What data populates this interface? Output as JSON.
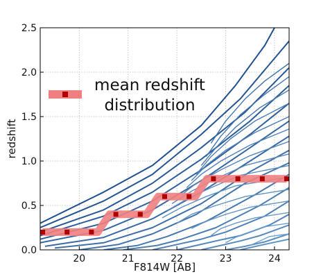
{
  "chart_data": {
    "type": "line",
    "xlabel": "F814W [AB]",
    "ylabel": "redshift",
    "xlim": [
      19.2,
      24.3
    ],
    "ylim": [
      0.0,
      2.5
    ],
    "x_ticks": [
      "20",
      "21",
      "22",
      "23",
      "24"
    ],
    "x_tick_values": [
      20,
      21,
      22,
      23,
      24
    ],
    "y_ticks": [
      "0.0",
      "0.5",
      "1.0",
      "1.5",
      "2.0",
      "2.5"
    ],
    "y_tick_values": [
      0.0,
      0.5,
      1.0,
      1.5,
      2.0,
      2.5
    ],
    "grid": true,
    "legend": {
      "placement": "top-left",
      "lines": [
        "mean redshift",
        "distribution"
      ]
    },
    "colors": {
      "contour_dark": "#1f4f8f",
      "contour_light": "#7fb2dc",
      "mean_line": "#f08080",
      "mean_marker": "#b00000"
    },
    "series": [
      {
        "name": "mean redshift distribution",
        "x": [
          19.25,
          19.75,
          20.25,
          20.75,
          21.25,
          21.75,
          22.25,
          22.75,
          23.25,
          23.75,
          24.25
        ],
        "y": [
          0.2,
          0.2,
          0.2,
          0.4,
          0.4,
          0.6,
          0.6,
          0.8,
          0.8,
          0.8,
          0.8
        ]
      }
    ],
    "contours": [
      {
        "x": [
          19.2,
          20.5,
          21.5,
          22.5,
          23.2,
          23.8,
          24.0
        ],
        "y": [
          0.3,
          0.65,
          0.95,
          1.4,
          1.85,
          2.3,
          2.5
        ]
      },
      {
        "x": [
          19.2,
          20.5,
          21.5,
          22.5,
          23.3,
          24.3
        ],
        "y": [
          0.25,
          0.55,
          0.85,
          1.3,
          1.7,
          2.35
        ]
      },
      {
        "x": [
          19.2,
          20.5,
          21.5,
          22.5,
          23.4,
          24.3
        ],
        "y": [
          0.2,
          0.45,
          0.75,
          1.15,
          1.55,
          2.05
        ]
      },
      {
        "x": [
          19.2,
          20.5,
          21.5,
          22.5,
          23.5,
          24.3
        ],
        "y": [
          0.16,
          0.38,
          0.65,
          1.02,
          1.45,
          1.85
        ]
      },
      {
        "x": [
          19.2,
          20.5,
          21.5,
          22.5,
          23.5,
          24.3
        ],
        "y": [
          0.12,
          0.3,
          0.55,
          0.9,
          1.3,
          1.65
        ]
      },
      {
        "x": [
          19.2,
          20.5,
          21.5,
          22.5,
          23.5,
          24.3
        ],
        "y": [
          0.08,
          0.22,
          0.45,
          0.78,
          1.15,
          1.45
        ]
      },
      {
        "x": [
          19.3,
          20.5,
          21.5,
          22.5,
          23.5,
          24.3
        ],
        "y": [
          0.04,
          0.14,
          0.35,
          0.65,
          1.0,
          1.28
        ]
      },
      {
        "x": [
          19.5,
          20.5,
          21.5,
          22.5,
          23.5,
          24.3
        ],
        "y": [
          0.02,
          0.08,
          0.25,
          0.52,
          0.88,
          1.12
        ]
      },
      {
        "x": [
          20.0,
          20.8,
          21.5,
          22.4,
          23.4,
          24.3
        ],
        "y": [
          0.0,
          0.06,
          0.18,
          0.4,
          0.75,
          0.98
        ]
      },
      {
        "x": [
          20.5,
          21.2,
          21.8,
          22.6,
          23.6,
          24.3
        ],
        "y": [
          0.0,
          0.05,
          0.15,
          0.32,
          0.62,
          0.85
        ]
      },
      {
        "x": [
          20.9,
          21.6,
          22.1,
          22.8,
          23.7,
          24.3
        ],
        "y": [
          0.0,
          0.05,
          0.12,
          0.25,
          0.5,
          0.7
        ]
      },
      {
        "x": [
          21.5,
          22.0,
          22.5,
          23.0,
          23.8,
          24.3
        ],
        "y": [
          0.0,
          0.06,
          0.12,
          0.2,
          0.38,
          0.55
        ]
      },
      {
        "x": [
          22.0,
          22.4,
          22.8,
          23.3,
          23.9,
          24.3
        ],
        "y": [
          0.0,
          0.05,
          0.1,
          0.16,
          0.28,
          0.4
        ]
      },
      {
        "x": [
          22.5,
          22.9,
          23.3,
          23.7,
          24.3
        ],
        "y": [
          0.0,
          0.05,
          0.1,
          0.16,
          0.28
        ]
      },
      {
        "x": [
          23.0,
          23.4,
          23.8,
          24.3
        ],
        "y": [
          0.0,
          0.04,
          0.09,
          0.18
        ]
      },
      {
        "x": [
          23.3,
          23.7,
          24.3
        ],
        "y": [
          0.0,
          0.05,
          0.12
        ]
      },
      {
        "x": [
          24.3,
          23.8,
          23.4,
          23.0,
          22.7
        ],
        "y": [
          2.1,
          1.9,
          1.7,
          1.45,
          1.2
        ]
      },
      {
        "x": [
          24.3,
          23.8,
          23.3,
          22.9,
          22.6
        ],
        "y": [
          1.95,
          1.75,
          1.52,
          1.28,
          1.05
        ]
      },
      {
        "x": [
          24.3,
          23.7,
          23.2,
          22.8,
          22.5
        ],
        "y": [
          1.8,
          1.6,
          1.38,
          1.15,
          0.95
        ]
      },
      {
        "x": [
          24.3,
          23.6,
          23.1,
          22.7,
          22.4
        ],
        "y": [
          1.65,
          1.45,
          1.25,
          1.05,
          0.85
        ]
      },
      {
        "x": [
          24.3,
          23.6,
          23.0,
          22.6,
          22.3
        ],
        "y": [
          1.5,
          1.32,
          1.12,
          0.95,
          0.78
        ]
      },
      {
        "x": [
          24.3,
          23.5,
          22.9,
          22.5,
          22.2
        ],
        "y": [
          1.36,
          1.18,
          1.0,
          0.85,
          0.7
        ]
      },
      {
        "x": [
          24.3,
          23.5,
          22.9,
          22.4,
          22.1
        ],
        "y": [
          1.22,
          1.06,
          0.9,
          0.75,
          0.62
        ]
      },
      {
        "x": [
          24.3,
          23.4,
          22.8,
          22.3,
          21.9
        ],
        "y": [
          1.08,
          0.95,
          0.8,
          0.66,
          0.52
        ]
      },
      {
        "x": [
          24.3,
          23.3,
          22.7,
          22.2,
          21.8
        ],
        "y": [
          0.95,
          0.84,
          0.7,
          0.57,
          0.44
        ]
      },
      {
        "x": [
          24.3,
          23.2,
          22.6,
          22.1,
          21.7
        ],
        "y": [
          0.82,
          0.72,
          0.6,
          0.48,
          0.36
        ]
      },
      {
        "x": [
          24.3,
          23.4,
          22.8,
          22.3,
          22.0
        ],
        "y": [
          0.68,
          0.6,
          0.5,
          0.4,
          0.3
        ]
      },
      {
        "x": [
          24.3,
          23.5,
          23.0,
          22.6,
          22.3
        ],
        "y": [
          0.55,
          0.48,
          0.4,
          0.32,
          0.24
        ]
      },
      {
        "x": [
          24.3,
          23.6,
          23.2,
          22.9,
          22.7
        ],
        "y": [
          0.42,
          0.36,
          0.3,
          0.24,
          0.16
        ]
      },
      {
        "x": [
          24.3,
          23.8,
          23.5,
          23.2,
          23.0
        ],
        "y": [
          0.3,
          0.26,
          0.2,
          0.14,
          0.08
        ]
      },
      {
        "x": [
          24.3,
          23.9,
          23.7,
          23.5
        ],
        "y": [
          0.18,
          0.15,
          0.1,
          0.05
        ]
      }
    ]
  }
}
